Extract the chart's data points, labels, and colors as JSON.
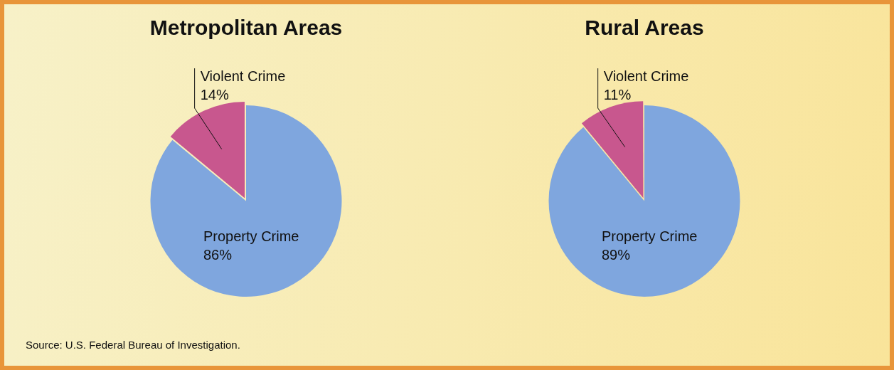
{
  "chart_data": [
    {
      "type": "pie",
      "title": "Metropolitan Areas",
      "categories": [
        "Violent Crime",
        "Property Crime"
      ],
      "values": [
        14,
        86
      ],
      "value_labels": [
        "14%",
        "86%"
      ],
      "colors": [
        "#c8578e",
        "#7fa6de"
      ],
      "legend": false,
      "annotations": [
        "Source: U.S. Federal Bureau of Investigation."
      ]
    },
    {
      "type": "pie",
      "title": "Rural Areas",
      "categories": [
        "Violent Crime",
        "Property Crime"
      ],
      "values": [
        11,
        89
      ],
      "value_labels": [
        "11%",
        "89%"
      ],
      "colors": [
        "#c8578e",
        "#7fa6de"
      ],
      "legend": false
    }
  ]
}
